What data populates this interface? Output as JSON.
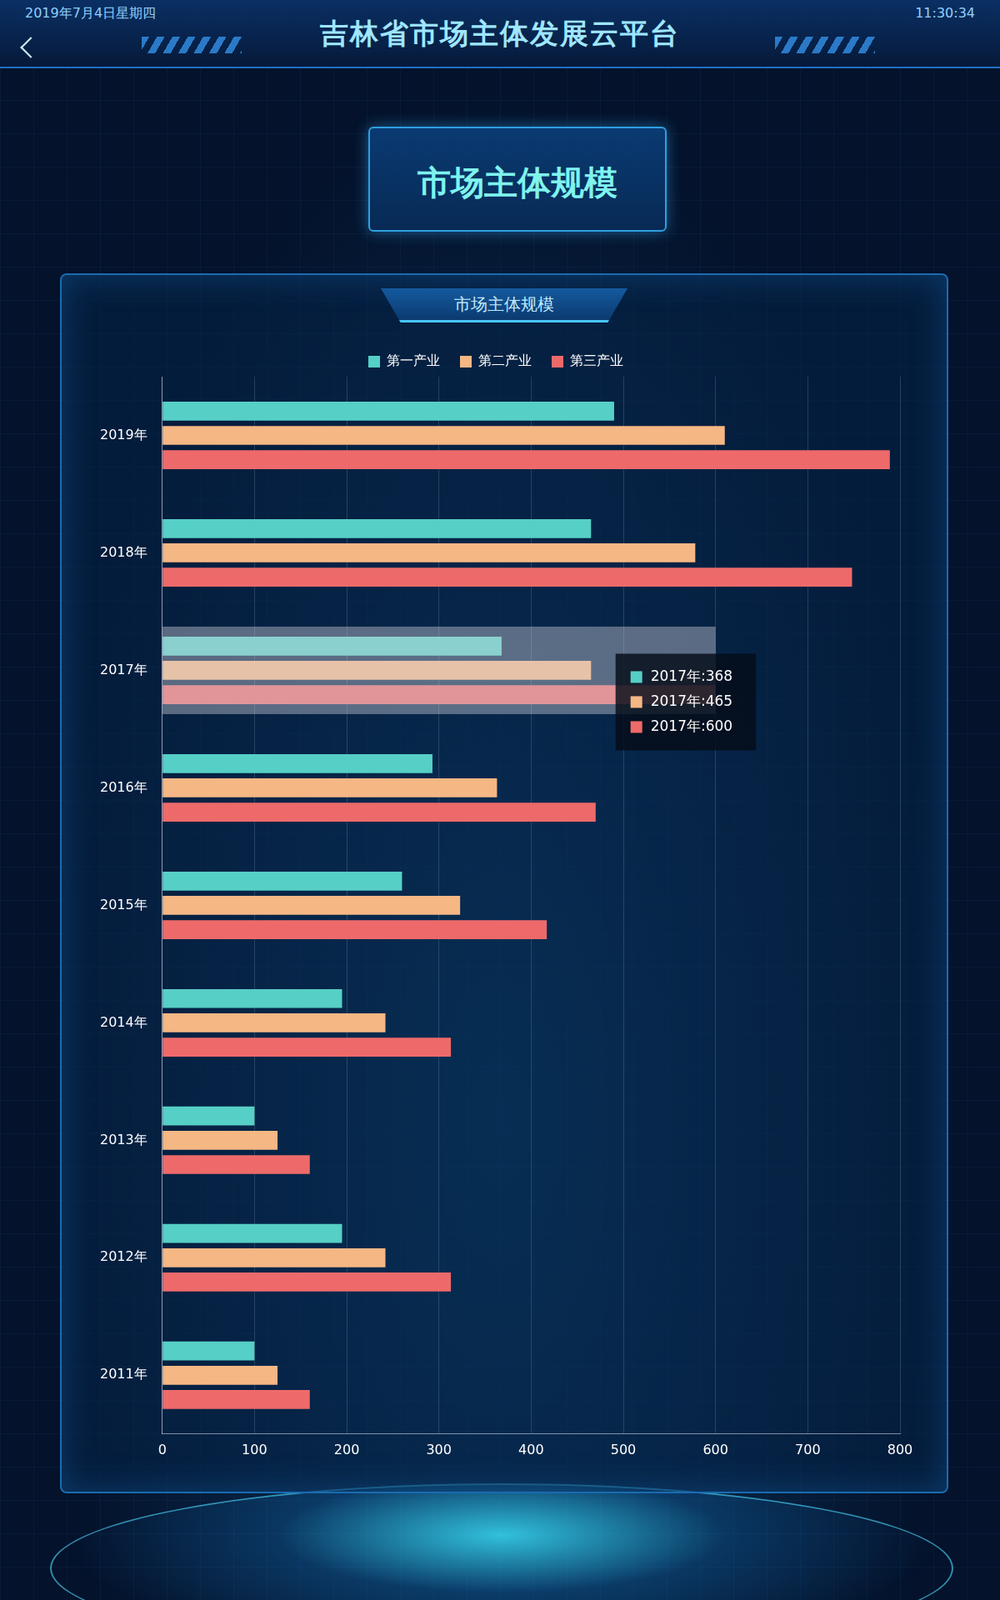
{
  "page": {
    "date": "2019年7月4日星期四",
    "time": "11:30:34",
    "title": "吉林省市场主体发展云平台",
    "section_title": "市场主体规模"
  },
  "chart_data": {
    "type": "bar",
    "title": "市场主体规模",
    "orientation": "horizontal",
    "categories": [
      "2019年",
      "2018年",
      "2017年",
      "2016年",
      "2015年",
      "2014年",
      "2013年",
      "2012年",
      "2011年"
    ],
    "series": [
      {
        "name": "第一产业",
        "color": "#56cfc6",
        "values": [
          490,
          465,
          368,
          293,
          260,
          195,
          100,
          195,
          100
        ]
      },
      {
        "name": "第二产业",
        "color": "#f5b784",
        "values": [
          610,
          578,
          465,
          363,
          323,
          242,
          125,
          242,
          125
        ]
      },
      {
        "name": "第三产业",
        "color": "#ee6a6a",
        "values": [
          789,
          748,
          600,
          470,
          417,
          313,
          160,
          313,
          160
        ]
      }
    ],
    "xlim": [
      0,
      800
    ],
    "xticks": [
      0,
      100,
      200,
      300,
      400,
      500,
      600,
      700,
      800
    ],
    "grid": true,
    "legend": "top",
    "tooltip": {
      "category": "2017年",
      "lines": [
        "2017年:368",
        "2017年:465",
        "2017年:600"
      ]
    }
  }
}
